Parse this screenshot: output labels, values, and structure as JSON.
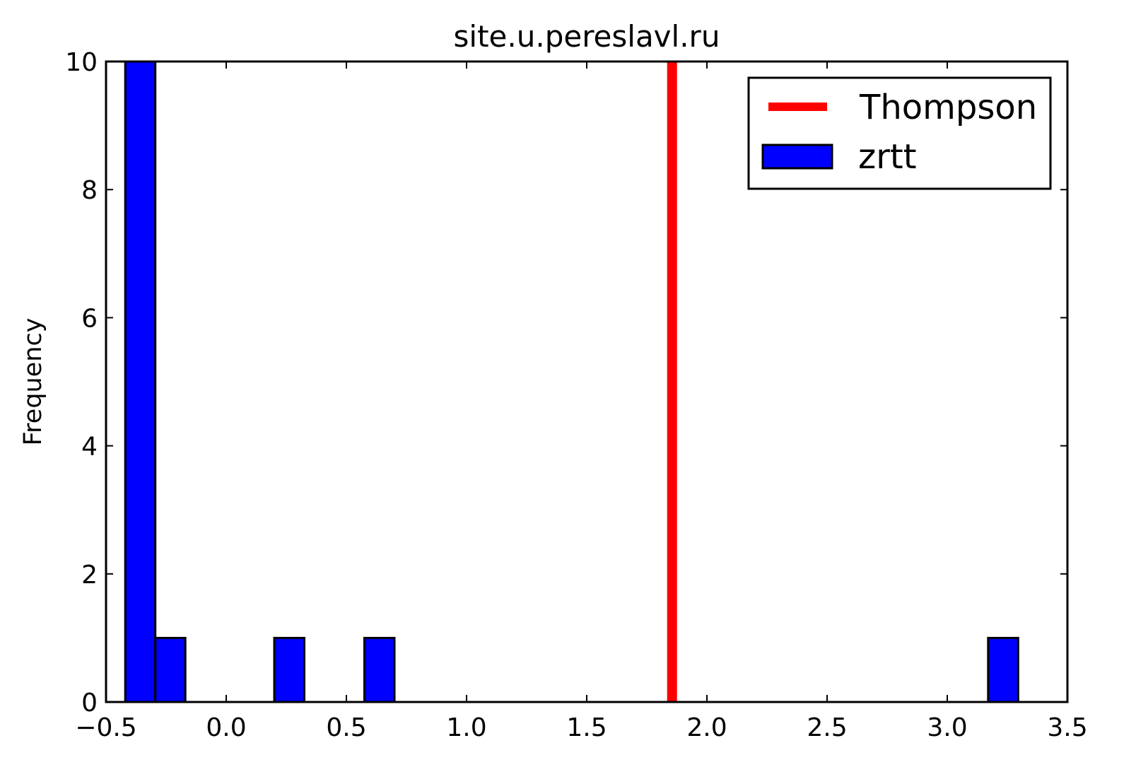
{
  "chart_data": {
    "type": "bar",
    "title": "site.u.pereslavl.ru",
    "xlabel": "",
    "ylabel": "Frequency",
    "xlim": [
      -0.5,
      3.5
    ],
    "ylim": [
      0,
      10
    ],
    "x_ticks": [
      -0.5,
      0.0,
      0.5,
      1.0,
      1.5,
      2.0,
      2.5,
      3.0,
      3.5
    ],
    "x_tick_labels": [
      "−0.5",
      "0.0",
      "0.5",
      "1.0",
      "1.5",
      "2.0",
      "2.5",
      "3.0",
      "3.5"
    ],
    "y_ticks": [
      0,
      2,
      4,
      6,
      8,
      10
    ],
    "y_tick_labels": [
      "0",
      "2",
      "4",
      "6",
      "8",
      "10"
    ],
    "grid": false,
    "legend_position": "top-right",
    "series": [
      {
        "name": "zrtt",
        "kind": "histogram",
        "color": "#0000ff",
        "edge_color": "#000000",
        "bins": [
          {
            "x0": -0.42,
            "x1": -0.295,
            "count": 10
          },
          {
            "x0": -0.295,
            "x1": -0.17,
            "count": 1
          },
          {
            "x0": 0.2,
            "x1": 0.325,
            "count": 1
          },
          {
            "x0": 0.575,
            "x1": 0.7,
            "count": 1
          },
          {
            "x0": 3.17,
            "x1": 3.295,
            "count": 1
          }
        ]
      },
      {
        "name": "Thompson",
        "kind": "vline",
        "color": "#ff0000",
        "x": 1.855
      }
    ]
  }
}
